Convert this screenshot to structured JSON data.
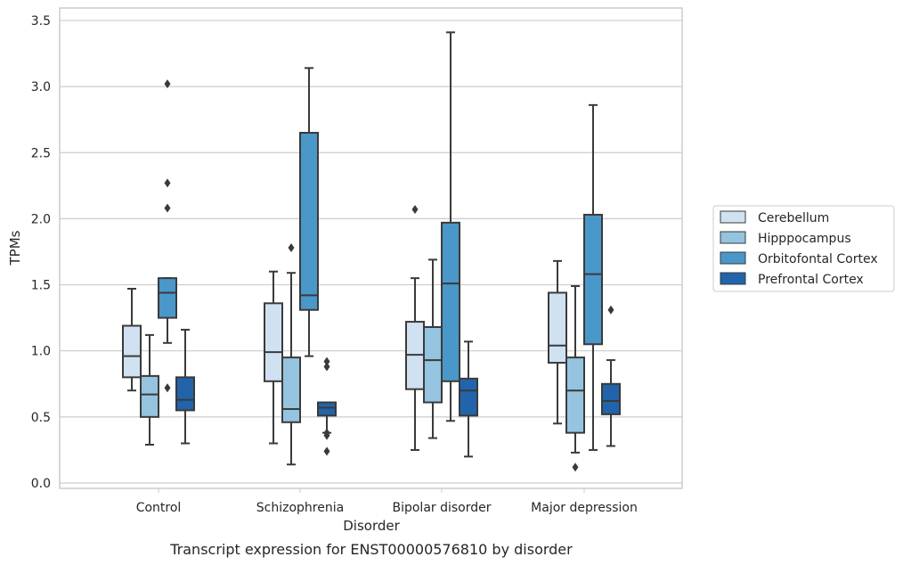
{
  "chart_data": {
    "type": "box",
    "xlabel": "Disorder",
    "ylabel": "TPMs",
    "caption": "Transcript expression for ENST00000576810 by disorder",
    "ylim": [
      -0.03,
      3.58
    ],
    "yticks": [
      "0.0",
      "0.5",
      "1.0",
      "1.5",
      "2.0",
      "2.5",
      "3.0",
      "3.5"
    ],
    "grid": "horizontal",
    "legend_position": "right",
    "categories": [
      "Control",
      "Schizophrenia",
      "Bipolar disorder",
      "Major depression"
    ],
    "series": [
      {
        "name": "Cerebellum",
        "color": "#d0e1f2",
        "boxes": [
          {
            "min": 0.7,
            "q1": 0.8,
            "median": 0.96,
            "q3": 1.19,
            "max": 1.47,
            "outliers": []
          },
          {
            "min": 0.3,
            "q1": 0.77,
            "median": 0.99,
            "q3": 1.36,
            "max": 1.6,
            "outliers": []
          },
          {
            "min": 0.25,
            "q1": 0.71,
            "median": 0.97,
            "q3": 1.22,
            "max": 1.55,
            "outliers": [
              2.07
            ]
          },
          {
            "min": 0.45,
            "q1": 0.91,
            "median": 1.04,
            "q3": 1.44,
            "max": 1.68,
            "outliers": []
          }
        ]
      },
      {
        "name": "Hipppocampus",
        "color": "#94c4df",
        "boxes": [
          {
            "min": 0.29,
            "q1": 0.5,
            "median": 0.67,
            "q3": 0.81,
            "max": 1.12,
            "outliers": []
          },
          {
            "min": 0.14,
            "q1": 0.46,
            "median": 0.56,
            "q3": 0.95,
            "max": 1.59,
            "outliers": [
              1.78
            ]
          },
          {
            "min": 0.34,
            "q1": 0.61,
            "median": 0.93,
            "q3": 1.18,
            "max": 1.69,
            "outliers": []
          },
          {
            "min": 0.23,
            "q1": 0.38,
            "median": 0.7,
            "q3": 0.95,
            "max": 1.49,
            "outliers": [
              0.12
            ]
          }
        ]
      },
      {
        "name": "Orbitofontal Cortex",
        "color": "#4a98c9",
        "boxes": [
          {
            "min": 1.06,
            "q1": 1.25,
            "median": 1.44,
            "q3": 1.55,
            "max": 1.55,
            "outliers": [
              0.72,
              2.08,
              2.27,
              3.02
            ]
          },
          {
            "min": 0.96,
            "q1": 1.31,
            "median": 1.42,
            "q3": 2.65,
            "max": 3.14,
            "outliers": []
          },
          {
            "min": 0.47,
            "q1": 0.77,
            "median": 1.51,
            "q3": 1.97,
            "max": 3.41,
            "outliers": []
          },
          {
            "min": 0.25,
            "q1": 1.05,
            "median": 1.58,
            "q3": 2.03,
            "max": 2.86,
            "outliers": []
          }
        ]
      },
      {
        "name": "Prefrontal Cortex",
        "color": "#2164ab",
        "boxes": [
          {
            "min": 0.3,
            "q1": 0.55,
            "median": 0.63,
            "q3": 0.8,
            "max": 1.16,
            "outliers": []
          },
          {
            "min": 0.38,
            "q1": 0.51,
            "median": 0.57,
            "q3": 0.61,
            "max": 0.61,
            "outliers": [
              0.24,
              0.36,
              0.38,
              0.88,
              0.92
            ]
          },
          {
            "min": 0.2,
            "q1": 0.51,
            "median": 0.7,
            "q3": 0.79,
            "max": 1.07,
            "outliers": []
          },
          {
            "min": 0.28,
            "q1": 0.52,
            "median": 0.62,
            "q3": 0.75,
            "max": 0.93,
            "outliers": [
              1.31
            ]
          }
        ]
      }
    ]
  }
}
